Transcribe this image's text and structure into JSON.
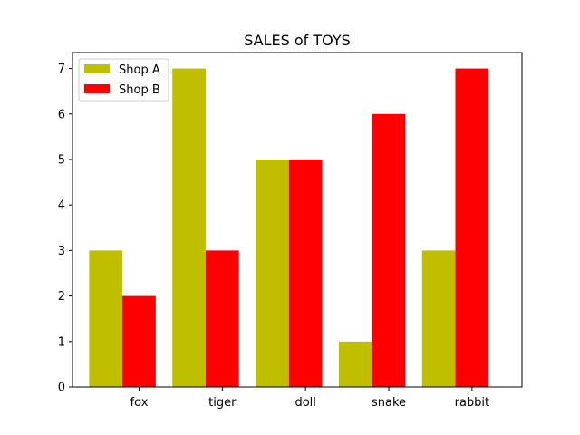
{
  "chart_data": {
    "type": "bar",
    "title": "SALES of TOYS",
    "xlabel": "",
    "ylabel": "",
    "categories": [
      "fox",
      "tiger",
      "doll",
      "snake",
      "rabbit"
    ],
    "series": [
      {
        "name": "Shop A",
        "values": [
          3,
          7,
          5,
          1,
          3
        ],
        "color": "#bfbf00"
      },
      {
        "name": "Shop B",
        "values": [
          2,
          3,
          5,
          6,
          7
        ],
        "color": "#ff0000"
      }
    ],
    "ylim": [
      0,
      7.35
    ],
    "yticks": [
      0,
      1,
      2,
      3,
      4,
      5,
      6,
      7
    ],
    "grid": false,
    "legend_position": "upper-left"
  }
}
